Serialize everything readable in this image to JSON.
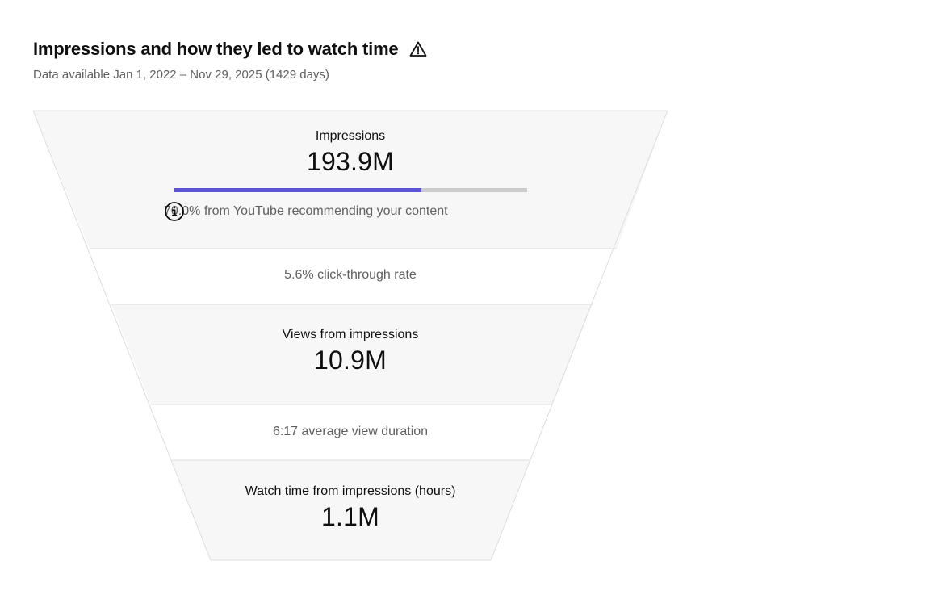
{
  "header": {
    "title": "Impressions and how they led to watch time",
    "title_icon": "warning-triangle-icon",
    "subtitle": "Data available Jan 1, 2022 – Nov 29, 2025 (1429 days)"
  },
  "funnel": {
    "impressions": {
      "label": "Impressions",
      "value": "193.9M",
      "recommended_share": 0.7,
      "recommended_text": "70.0% from YouTube recommending your content",
      "info_icon": "info-circle-icon"
    },
    "ctr": {
      "text": "5.6% click-through rate"
    },
    "views": {
      "label": "Views from impressions",
      "value": "10.9M"
    },
    "avd": {
      "text": "6:17 average view duration"
    },
    "watch_time": {
      "label": "Watch time from impressions (hours)",
      "value": "1.1M"
    }
  },
  "colors": {
    "stage_fill": "#f7f7f7",
    "separator": "#dddddd",
    "bar_fill": "#5b54d6",
    "bar_track": "#cccccc",
    "secondary_text": "#606060"
  }
}
